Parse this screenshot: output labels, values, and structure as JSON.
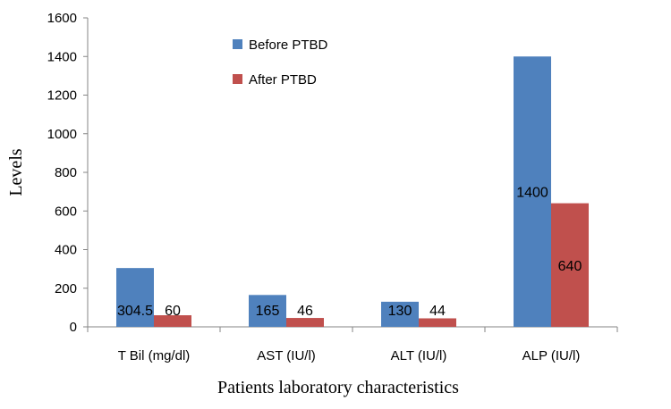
{
  "chart_data": {
    "type": "bar",
    "title": "",
    "xlabel": "Patients laboratory characteristics",
    "ylabel": "Levels",
    "ylim": [
      0,
      1600
    ],
    "yticks": [
      0,
      200,
      400,
      600,
      800,
      1000,
      1200,
      1400,
      1600
    ],
    "categories": [
      "T Bil (mg/dl)",
      "AST (IU/l)",
      "ALT (IU/l)",
      "ALP (IU/l)"
    ],
    "series": [
      {
        "name": "Before PTBD",
        "color": "#4F81BD",
        "values": [
          304.5,
          165,
          130,
          1400
        ],
        "labels": [
          "304.5",
          "165",
          "130",
          "1400"
        ]
      },
      {
        "name": "After PTBD",
        "color": "#C0504D",
        "values": [
          60,
          46,
          44,
          640
        ],
        "labels": [
          "60",
          "46",
          "44",
          "640"
        ]
      }
    ],
    "legend_position": "top-left-inside",
    "grid": false
  }
}
